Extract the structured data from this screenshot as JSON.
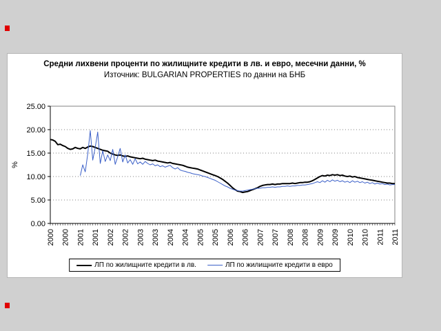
{
  "chart_data": {
    "type": "line",
    "title": "Средни лихвени проценти по жилищните кредити в лв. и евро, месечни данни, %",
    "subtitle": "Източник: BULGARIAN PROPERTIES по данни на БНБ",
    "ylabel": "%",
    "ylim": [
      0,
      25
    ],
    "y_ticks": [
      "25.00",
      "20.00",
      "15.00",
      "10.00",
      "5.00",
      "0.00"
    ],
    "x_start": "2000-01",
    "x_end": "2011-07",
    "x_tick_every": 6,
    "x_tick_labels": [
      "2000",
      "2000",
      "2001",
      "2001",
      "2002",
      "2002",
      "2003",
      "2003",
      "2004",
      "2004",
      "2005",
      "2005",
      "2006",
      "2006",
      "2007",
      "2007",
      "2008",
      "2008",
      "2009",
      "2009",
      "2010",
      "2010",
      "2011",
      "2011"
    ],
    "grid": "horizontal-dotted",
    "legend_position": "bottom",
    "series": [
      {
        "name": "ЛП по жилищните кредити в лв.",
        "color": "#000000",
        "width": 2,
        "values": [
          17.9,
          17.8,
          17.5,
          16.8,
          16.9,
          16.6,
          16.4,
          16.0,
          15.8,
          15.9,
          16.2,
          16.0,
          15.9,
          16.2,
          16.0,
          16.3,
          16.5,
          16.4,
          16.2,
          16.0,
          15.8,
          15.6,
          15.5,
          15.4,
          15.0,
          14.8,
          14.6,
          14.5,
          14.6,
          14.4,
          14.3,
          14.4,
          14.2,
          14.1,
          14.0,
          13.9,
          13.8,
          13.9,
          13.7,
          13.6,
          13.5,
          13.4,
          13.5,
          13.3,
          13.2,
          13.1,
          13.0,
          12.9,
          13.0,
          12.8,
          12.7,
          12.6,
          12.5,
          12.4,
          12.2,
          12.0,
          11.9,
          11.8,
          11.7,
          11.6,
          11.4,
          11.2,
          11.0,
          10.8,
          10.6,
          10.4,
          10.2,
          10.0,
          9.7,
          9.4,
          9.0,
          8.6,
          8.1,
          7.6,
          7.2,
          6.9,
          6.8,
          6.6,
          6.7,
          6.8,
          7.0,
          7.2,
          7.4,
          7.6,
          7.9,
          8.1,
          8.2,
          8.3,
          8.3,
          8.4,
          8.3,
          8.4,
          8.4,
          8.5,
          8.5,
          8.5,
          8.5,
          8.6,
          8.5,
          8.6,
          8.7,
          8.7,
          8.8,
          8.8,
          8.9,
          9.1,
          9.4,
          9.7,
          10.0,
          10.2,
          10.1,
          10.3,
          10.2,
          10.4,
          10.3,
          10.4,
          10.2,
          10.3,
          10.1,
          10.0,
          10.1,
          9.9,
          10.0,
          9.8,
          9.7,
          9.6,
          9.5,
          9.4,
          9.3,
          9.2,
          9.1,
          9.0,
          8.9,
          8.8,
          8.7,
          8.6,
          8.6,
          8.5,
          8.5
        ]
      },
      {
        "name": "ЛП по жилищните кредити в евро",
        "color": "#3a5fc8",
        "width": 1,
        "values": [
          null,
          null,
          null,
          null,
          null,
          null,
          null,
          null,
          null,
          null,
          null,
          null,
          10.2,
          12.5,
          11.0,
          14.8,
          19.8,
          13.5,
          16.2,
          19.5,
          12.8,
          15.5,
          13.2,
          14.6,
          13.4,
          15.8,
          12.6,
          14.2,
          16.0,
          13.1,
          14.6,
          12.9,
          13.6,
          12.6,
          13.8,
          12.7,
          13.1,
          12.6,
          13.2,
          12.8,
          12.5,
          12.7,
          12.3,
          12.5,
          12.1,
          12.3,
          12.0,
          12.2,
          12.4,
          11.9,
          11.6,
          11.9,
          11.4,
          11.2,
          11.1,
          10.9,
          10.8,
          10.6,
          10.5,
          10.4,
          10.3,
          10.1,
          10.0,
          9.8,
          9.6,
          9.4,
          9.2,
          8.9,
          8.6,
          8.3,
          8.0,
          7.8,
          7.5,
          7.3,
          7.1,
          7.0,
          6.9,
          6.9,
          7.0,
          7.1,
          7.2,
          7.3,
          7.4,
          7.5,
          7.5,
          7.6,
          7.6,
          7.7,
          7.7,
          7.8,
          7.7,
          7.8,
          7.8,
          7.9,
          7.9,
          8.0,
          7.9,
          8.0,
          8.0,
          8.1,
          8.1,
          8.2,
          8.2,
          8.3,
          8.4,
          8.5,
          8.7,
          8.9,
          8.7,
          9.1,
          8.8,
          9.2,
          8.9,
          9.3,
          9.0,
          9.2,
          8.9,
          9.1,
          8.8,
          9.0,
          8.7,
          9.1,
          8.8,
          9.0,
          8.7,
          8.9,
          8.6,
          8.8,
          8.5,
          8.7,
          8.4,
          8.6,
          8.4,
          8.5,
          8.3,
          8.4,
          8.2,
          8.3,
          8.3
        ]
      }
    ]
  }
}
